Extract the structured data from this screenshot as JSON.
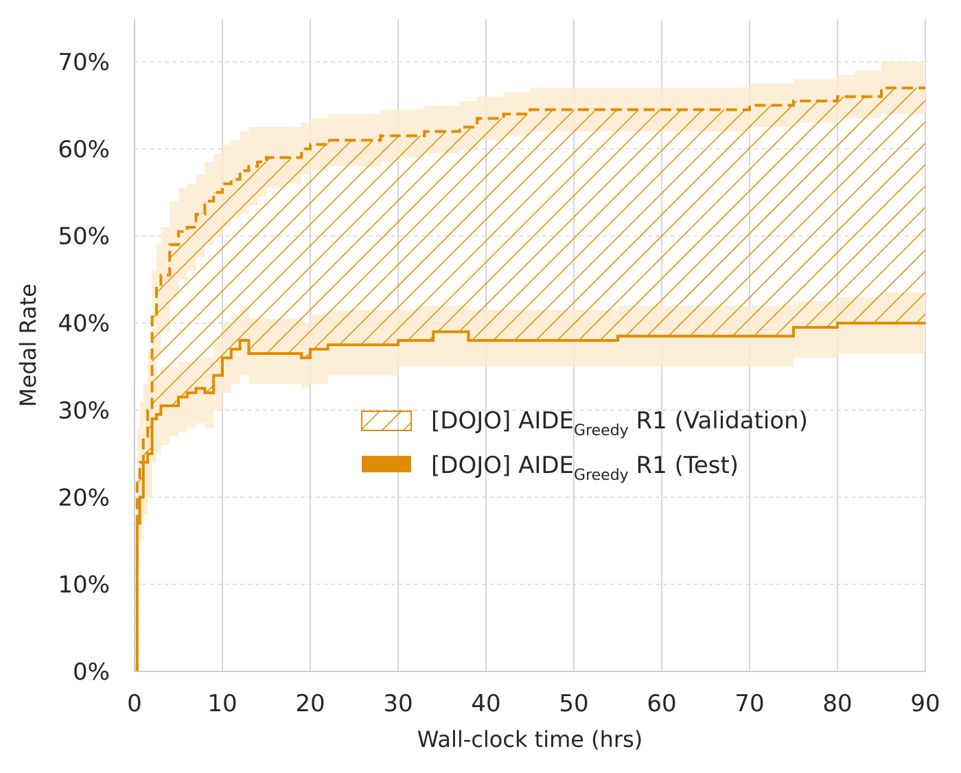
{
  "chart_data": {
    "type": "line",
    "title": "",
    "xlabel": "Wall-clock time (hrs)",
    "ylabel": "Medal Rate",
    "xlim": [
      0,
      90
    ],
    "ylim": [
      0,
      70
    ],
    "x_ticks": [
      0,
      10,
      20,
      30,
      40,
      50,
      60,
      70,
      80,
      90
    ],
    "x_tick_labels": [
      "0",
      "10",
      "20",
      "30",
      "40",
      "50",
      "60",
      "70",
      "80",
      "90"
    ],
    "y_ticks": [
      0,
      10,
      20,
      30,
      40,
      50,
      60,
      70
    ],
    "y_tick_labels": [
      "0%",
      "10%",
      "20%",
      "30%",
      "40%",
      "50%",
      "60%",
      "70%"
    ],
    "grid": true,
    "legend_position": "center-right",
    "colors": {
      "series": "#e08c00",
      "band": "#fdebd0",
      "grid_major": "#cccccc",
      "grid_minor": "#d0d0d0"
    },
    "series": [
      {
        "name_main": "[DOJO] AIDE",
        "name_sub": "Greedy",
        "name_tail": " R1 (Validation)",
        "style": "dashed",
        "x": [
          0,
          0.3,
          0.6,
          1,
          1.5,
          2,
          2.5,
          3,
          4,
          5,
          6,
          7,
          8,
          9,
          10,
          11,
          12,
          13,
          14,
          15,
          17,
          19,
          20,
          22,
          25,
          28,
          30,
          33,
          35,
          37,
          39,
          42,
          45,
          50,
          55,
          60,
          65,
          70,
          75,
          80,
          82,
          85,
          90
        ],
        "y": [
          0,
          22,
          24,
          27,
          30,
          41,
          44,
          45.5,
          49,
          50.5,
          51,
          52.5,
          54,
          55,
          56,
          56.5,
          57.5,
          58,
          58.5,
          59,
          59,
          60,
          60.5,
          61,
          61,
          61.5,
          61.5,
          62,
          62,
          62.5,
          63.5,
          64,
          64.5,
          64.5,
          64.5,
          64.5,
          64.5,
          65,
          65.5,
          66,
          66,
          67,
          67
        ],
        "band_low": [
          0,
          15,
          18,
          20,
          24,
          32,
          36,
          39,
          43,
          45,
          46,
          47.5,
          49,
          50,
          51,
          52,
          52.5,
          53.5,
          54.5,
          55.5,
          56,
          57,
          57.5,
          58,
          58,
          58.5,
          59,
          59.5,
          59.5,
          60,
          61,
          61.5,
          62,
          62,
          62,
          62,
          62,
          62.5,
          63,
          63.5,
          63.5,
          64,
          64
        ],
        "band_high": [
          0,
          28,
          31,
          33,
          37,
          46,
          49,
          51,
          54,
          55.5,
          56,
          57,
          58.5,
          59.5,
          60.5,
          61,
          62,
          62.5,
          62.5,
          62.5,
          62.5,
          63,
          63.5,
          64,
          64,
          64.5,
          64.5,
          65,
          65,
          65.5,
          66,
          66.5,
          67,
          67,
          67,
          67,
          67,
          67.5,
          68,
          68.5,
          69,
          70,
          70
        ]
      },
      {
        "name_main": "[DOJO] AIDE",
        "name_sub": "Greedy",
        "name_tail": " R1 (Test)",
        "style": "solid",
        "x": [
          0,
          0.3,
          0.6,
          1,
          1.5,
          2,
          2.5,
          3,
          4,
          5,
          6,
          7,
          8,
          9,
          10,
          11,
          12,
          13,
          15,
          17,
          19,
          20,
          22,
          25,
          28,
          30,
          32,
          34,
          36,
          38,
          40,
          45,
          50,
          55,
          60,
          65,
          70,
          75,
          80,
          85,
          90
        ],
        "y": [
          0,
          17,
          20,
          24,
          25,
          29,
          29.5,
          30.5,
          30.5,
          31.5,
          32,
          32.5,
          32,
          34,
          36,
          37,
          38,
          36.5,
          36.5,
          36.5,
          36,
          37,
          37.5,
          37.5,
          37.5,
          38,
          38,
          39,
          39,
          38,
          38,
          38,
          38,
          38.5,
          38.5,
          38.5,
          38.5,
          39.5,
          40,
          40,
          40
        ],
        "band_low": [
          0,
          12,
          15,
          18,
          20,
          24,
          25,
          26,
          27,
          27.5,
          28,
          28.5,
          28,
          30,
          32,
          33,
          34,
          33,
          33,
          33,
          32.5,
          33,
          34,
          34,
          34,
          35,
          35,
          35,
          35,
          35,
          35,
          35,
          35,
          35,
          35,
          35,
          35,
          36,
          36.5,
          36.5,
          36.5
        ],
        "band_high": [
          0,
          21,
          24,
          28,
          29,
          33,
          34,
          35,
          35,
          35.5,
          35.5,
          36,
          36,
          38,
          40,
          41,
          42,
          40.5,
          40.5,
          40.5,
          40,
          41,
          41.5,
          41.5,
          41.5,
          41.5,
          42,
          42,
          42,
          41.5,
          41.5,
          41.5,
          41.5,
          42,
          42,
          42,
          42,
          42.5,
          43,
          43.5,
          43.5
        ]
      }
    ]
  }
}
